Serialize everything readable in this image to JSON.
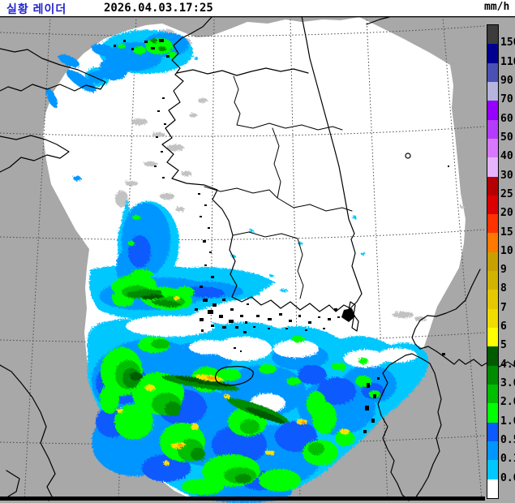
{
  "header": {
    "title": "실황 레이더",
    "timestamp": "2026.04.03.17:25"
  },
  "legend": {
    "unit": "mm/h",
    "bands": [
      {
        "color": "#3c3c3c",
        "label": "150"
      },
      {
        "color": "#000090",
        "label": "110"
      },
      {
        "color": "#4b50b4",
        "label": "90"
      },
      {
        "color": "#b4b4dc",
        "label": "70"
      },
      {
        "color": "#9600ff",
        "label": "60"
      },
      {
        "color": "#b43cff",
        "label": "50"
      },
      {
        "color": "#d778ff",
        "label": "40"
      },
      {
        "color": "#e6b4ff",
        "label": "30"
      },
      {
        "color": "#b40000",
        "label": "25"
      },
      {
        "color": "#dc0000",
        "label": "20"
      },
      {
        "color": "#ff3200",
        "label": "15"
      },
      {
        "color": "#ff7800",
        "label": "10"
      },
      {
        "color": "#c8a000",
        "label": "9"
      },
      {
        "color": "#d2b400",
        "label": "8"
      },
      {
        "color": "#e6c800",
        "label": "7"
      },
      {
        "color": "#f0dc00",
        "label": "6"
      },
      {
        "color": "#ffff00",
        "label": "5"
      },
      {
        "color": "#005a00",
        "label": "4.0"
      },
      {
        "color": "#008c00",
        "label": "3.0"
      },
      {
        "color": "#00be00",
        "label": "2.0"
      },
      {
        "color": "#00ff00",
        "label": "1.0"
      },
      {
        "color": "#0a5aff",
        "label": "0.5"
      },
      {
        "color": "#0096ff",
        "label": "0.1"
      },
      {
        "color": "#00c8ff",
        "label": "0.0"
      },
      {
        "color": "#ffffff",
        "label": ""
      }
    ]
  },
  "map": {
    "palette": {
      "background": "#a8a8a8",
      "coverage": "#ffffff",
      "coast": "#000000",
      "grid": "#4a4a4a",
      "clutter": "#c2c2c2",
      "rain_cyan": "#00c8ff",
      "rain_lightblue": "#0096ff",
      "rain_blue": "#0a5aff",
      "rain_green1": "#00ff00",
      "rain_green2": "#00be00",
      "rain_green3": "#008c00",
      "rain_green4": "#005a00",
      "rain_yellow": "#ffe100",
      "rain_orange": "#ffa000",
      "frame": "#000000"
    }
  }
}
